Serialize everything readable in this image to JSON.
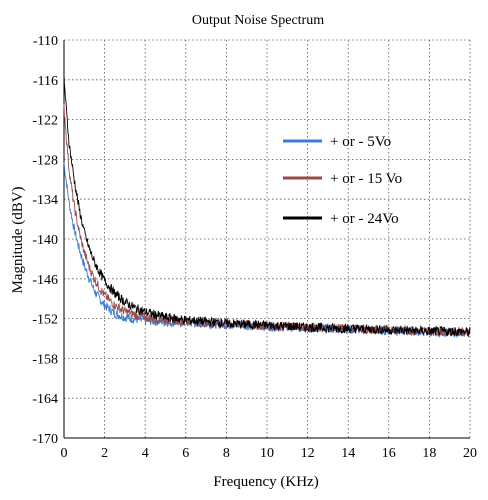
{
  "chart_data": {
    "type": "line",
    "title": "Output Noise Spectrum",
    "xlabel": "Frequency (KHz)",
    "ylabel": "Magnitude (dBV)",
    "xlim": [
      0,
      20
    ],
    "ylim": [
      -170,
      -110
    ],
    "x_ticks": [
      "0",
      "2",
      "4",
      "6",
      "8",
      "10",
      "12",
      "14",
      "16",
      "18",
      "20"
    ],
    "y_ticks": [
      "-110",
      "-116",
      "-122",
      "-128",
      "-134",
      "-140",
      "-146",
      "-152",
      "-158",
      "-164",
      "-170"
    ],
    "grid": true,
    "legend_position": "right-middle",
    "series": [
      {
        "name": "+ or - 5Vo",
        "color": "#3b7fd4",
        "x": [
          0,
          0.1,
          0.25,
          0.5,
          0.75,
          1,
          1.25,
          1.5,
          1.75,
          2,
          2.5,
          3,
          3.5,
          4,
          5,
          6,
          8,
          10,
          12,
          14,
          16,
          18,
          20
        ],
        "y": [
          -128.5,
          -131,
          -134.5,
          -138.5,
          -141.5,
          -144,
          -146,
          -147.8,
          -149,
          -150,
          -151.2,
          -151.8,
          -152.1,
          -152.3,
          -152.5,
          -152.6,
          -152.9,
          -153.2,
          -153.4,
          -153.6,
          -153.8,
          -154,
          -154.1
        ]
      },
      {
        "name": "+ or - 15 Vo",
        "color": "#9b4a4a",
        "x": [
          0,
          0.1,
          0.25,
          0.5,
          0.75,
          1,
          1.25,
          1.5,
          1.75,
          2,
          2.5,
          3,
          3.5,
          4,
          5,
          6,
          8,
          10,
          12,
          14,
          16,
          18,
          20
        ],
        "y": [
          -120,
          -124,
          -129.5,
          -135,
          -139,
          -142,
          -144.3,
          -146,
          -147.4,
          -148.5,
          -150,
          -150.9,
          -151.4,
          -151.8,
          -152.2,
          -152.4,
          -152.8,
          -153.1,
          -153.3,
          -153.5,
          -153.7,
          -153.9,
          -154
        ]
      },
      {
        "name": "+ or - 24Vo",
        "color": "#000000",
        "x": [
          0,
          0.1,
          0.25,
          0.5,
          0.75,
          1,
          1.25,
          1.5,
          1.75,
          2,
          2.5,
          3,
          3.5,
          4,
          5,
          6,
          8,
          10,
          12,
          14,
          16,
          18,
          20
        ],
        "y": [
          -115.5,
          -120,
          -125.5,
          -131,
          -135.5,
          -139,
          -141.5,
          -143.5,
          -145,
          -146.3,
          -148.2,
          -149.5,
          -150.4,
          -151,
          -151.8,
          -152.2,
          -152.7,
          -153,
          -153.3,
          -153.5,
          -153.7,
          -153.9,
          -154
        ]
      }
    ]
  }
}
